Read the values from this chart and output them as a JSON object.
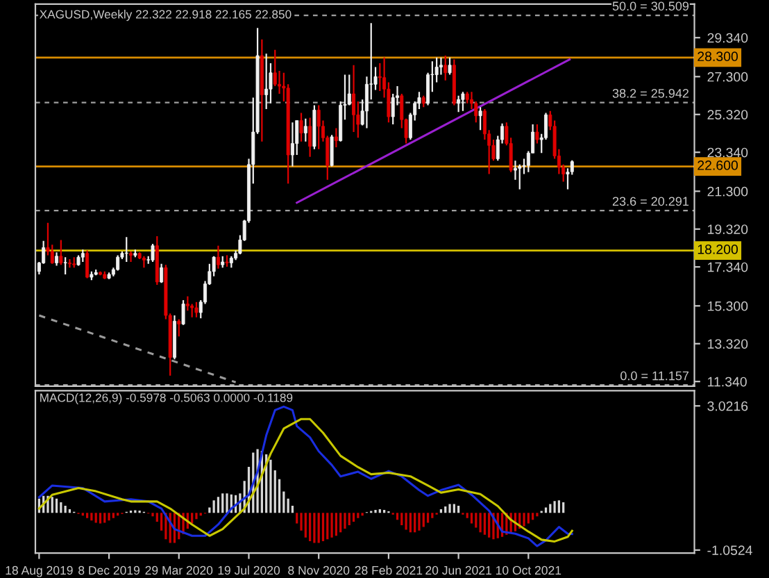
{
  "chart_data": [
    {
      "type": "candlestick",
      "title": "XAGUSD,Weekly 22.322 22.918 22.165 22.850",
      "x": [
        "2019-08-18",
        "2019-08-25",
        "2019-09-01",
        "2019-09-08",
        "2019-09-15",
        "2019-09-22",
        "2019-09-29",
        "2019-10-06",
        "2019-10-13",
        "2019-10-20",
        "2019-10-27",
        "2019-11-03",
        "2019-11-10",
        "2019-11-17",
        "2019-11-24",
        "2019-12-01",
        "2019-12-08",
        "2019-12-15",
        "2019-12-22",
        "2019-12-29",
        "2020-01-05",
        "2020-01-12",
        "2020-01-19",
        "2020-01-26",
        "2020-02-02",
        "2020-02-09",
        "2020-02-16",
        "2020-02-23",
        "2020-03-01",
        "2020-03-08",
        "2020-03-15",
        "2020-03-22",
        "2020-03-29",
        "2020-04-05",
        "2020-04-12",
        "2020-04-19",
        "2020-04-26",
        "2020-05-03",
        "2020-05-10",
        "2020-05-17",
        "2020-05-24",
        "2020-05-31",
        "2020-06-07",
        "2020-06-14",
        "2020-06-21",
        "2020-06-28",
        "2020-07-05",
        "2020-07-12",
        "2020-07-19",
        "2020-07-26",
        "2020-08-02",
        "2020-08-09",
        "2020-08-16",
        "2020-08-23",
        "2020-08-30",
        "2020-09-06",
        "2020-09-13",
        "2020-09-20",
        "2020-09-27",
        "2020-10-04",
        "2020-10-11",
        "2020-10-18",
        "2020-10-25",
        "2020-11-01",
        "2020-11-08",
        "2020-11-15",
        "2020-11-22",
        "2020-11-29",
        "2020-12-06",
        "2020-12-13",
        "2020-12-20",
        "2020-12-27",
        "2021-01-03",
        "2021-01-10",
        "2021-01-17",
        "2021-01-24",
        "2021-01-31",
        "2021-02-07",
        "2021-02-14",
        "2021-02-21",
        "2021-02-28",
        "2021-03-07",
        "2021-03-14",
        "2021-03-21",
        "2021-03-28",
        "2021-04-04",
        "2021-04-11",
        "2021-04-18",
        "2021-04-25",
        "2021-05-02",
        "2021-05-09",
        "2021-05-16",
        "2021-05-23",
        "2021-05-30",
        "2021-06-06",
        "2021-06-13",
        "2021-06-20",
        "2021-06-27",
        "2021-07-04",
        "2021-07-11",
        "2021-07-18",
        "2021-07-25",
        "2021-08-01",
        "2021-08-08",
        "2021-08-15",
        "2021-08-22",
        "2021-08-29",
        "2021-09-05",
        "2021-09-12",
        "2021-09-19",
        "2021-09-26",
        "2021-10-03",
        "2021-10-10",
        "2021-10-17",
        "2021-10-24",
        "2021-10-31",
        "2021-11-07",
        "2021-11-14",
        "2021-11-21",
        "2021-11-28",
        "2021-12-05",
        "2021-12-12",
        "2021-12-19"
      ],
      "ohlc": [
        [
          17.1,
          17.6,
          16.95,
          17.55
        ],
        [
          17.55,
          18.7,
          17.5,
          18.35
        ],
        [
          18.35,
          19.65,
          17.95,
          18.15
        ],
        [
          18.15,
          18.5,
          17.5,
          17.55
        ],
        [
          17.55,
          18.1,
          17.4,
          17.9
        ],
        [
          17.9,
          18.75,
          17.45,
          17.55
        ],
        [
          17.55,
          17.85,
          16.95,
          17.55
        ],
        [
          17.55,
          17.75,
          17.3,
          17.5
        ],
        [
          17.5,
          17.85,
          17.3,
          17.45
        ],
        [
          17.45,
          17.95,
          17.4,
          17.85
        ],
        [
          17.85,
          18.25,
          17.6,
          18.05
        ],
        [
          18.05,
          18.2,
          16.75,
          16.8
        ],
        [
          16.8,
          17.1,
          16.65,
          16.95
        ],
        [
          16.95,
          17.2,
          16.9,
          17.05
        ],
        [
          17.05,
          17.1,
          16.9,
          16.95
        ],
        [
          16.95,
          17.1,
          16.7,
          16.75
        ],
        [
          16.75,
          17.05,
          16.7,
          16.95
        ],
        [
          16.95,
          17.3,
          16.85,
          17.2
        ],
        [
          17.2,
          17.95,
          17.15,
          17.85
        ],
        [
          17.85,
          18.15,
          17.75,
          18.05
        ],
        [
          18.05,
          18.9,
          17.6,
          18.05
        ],
        [
          18.05,
          18.15,
          17.6,
          17.95
        ],
        [
          17.95,
          18.25,
          17.85,
          18.05
        ],
        [
          18.05,
          18.1,
          17.75,
          17.8
        ],
        [
          17.8,
          17.9,
          17.3,
          17.7
        ],
        [
          17.7,
          17.9,
          17.5,
          17.7
        ],
        [
          17.7,
          18.55,
          17.6,
          18.45
        ],
        [
          18.45,
          18.95,
          16.4,
          16.55
        ],
        [
          16.55,
          17.5,
          16.5,
          17.3
        ],
        [
          17.3,
          17.45,
          14.6,
          14.8
        ],
        [
          14.8,
          14.9,
          11.65,
          12.6
        ],
        [
          12.6,
          14.8,
          12.5,
          14.5
        ],
        [
          14.5,
          14.6,
          13.7,
          14.35
        ],
        [
          14.35,
          15.6,
          14.3,
          15.4
        ],
        [
          15.4,
          15.8,
          15.05,
          15.3
        ],
        [
          15.3,
          15.4,
          14.7,
          15.2
        ],
        [
          15.2,
          15.5,
          14.7,
          14.95
        ],
        [
          14.95,
          15.6,
          14.65,
          15.5
        ],
        [
          15.5,
          16.6,
          15.4,
          16.45
        ],
        [
          16.45,
          17.5,
          16.4,
          17.1
        ],
        [
          17.1,
          17.9,
          16.85,
          17.85
        ],
        [
          17.85,
          18.45,
          17.25,
          17.45
        ],
        [
          17.45,
          17.9,
          17.3,
          17.6
        ],
        [
          17.6,
          17.95,
          17.35,
          17.55
        ],
        [
          17.55,
          17.9,
          17.3,
          17.8
        ],
        [
          17.8,
          18.2,
          17.7,
          18.05
        ],
        [
          18.05,
          19.0,
          18.0,
          18.75
        ],
        [
          18.75,
          19.8,
          18.7,
          19.75
        ],
        [
          19.75,
          23.0,
          19.65,
          22.7
        ],
        [
          22.7,
          26.2,
          21.7,
          24.4
        ],
        [
          24.4,
          29.85,
          24.3,
          28.4
        ],
        [
          28.4,
          29.25,
          23.9,
          26.35
        ],
        [
          26.35,
          28.5,
          25.6,
          26.65
        ],
        [
          26.65,
          28.0,
          25.9,
          27.5
        ],
        [
          27.5,
          28.7,
          26.8,
          26.9
        ],
        [
          26.9,
          27.6,
          26.4,
          26.8
        ],
        [
          26.8,
          27.5,
          26.0,
          26.7
        ],
        [
          26.7,
          26.9,
          21.7,
          23.2
        ],
        [
          23.2,
          24.9,
          22.6,
          23.8
        ],
        [
          23.8,
          25.0,
          23.2,
          25.0
        ],
        [
          25.0,
          25.4,
          23.9,
          24.35
        ],
        [
          24.35,
          25.1,
          23.9,
          24.7
        ],
        [
          24.7,
          25.15,
          23.1,
          23.65
        ],
        [
          23.65,
          25.8,
          23.5,
          25.55
        ],
        [
          25.55,
          25.8,
          23.5,
          24.7
        ],
        [
          24.7,
          25.0,
          23.9,
          24.1
        ],
        [
          24.1,
          24.2,
          21.9,
          22.65
        ],
        [
          22.65,
          24.25,
          22.6,
          24.15
        ],
        [
          24.15,
          24.6,
          23.6,
          23.95
        ],
        [
          23.95,
          26.0,
          23.9,
          25.8
        ],
        [
          25.8,
          27.4,
          25.05,
          25.85
        ],
        [
          25.85,
          27.4,
          25.8,
          26.4
        ],
        [
          26.4,
          27.9,
          24.4,
          25.3
        ],
        [
          25.3,
          26.0,
          24.1,
          24.8
        ],
        [
          24.8,
          26.1,
          24.75,
          25.5
        ],
        [
          25.5,
          27.3,
          24.6,
          26.9
        ],
        [
          26.9,
          30.1,
          26.1,
          26.9
        ],
        [
          26.9,
          27.8,
          26.6,
          27.3
        ],
        [
          27.3,
          28.0,
          26.55,
          27.25
        ],
        [
          27.25,
          28.3,
          26.2,
          26.65
        ],
        [
          26.65,
          27.0,
          24.9,
          25.2
        ],
        [
          25.2,
          26.4,
          24.8,
          26.2
        ],
        [
          26.2,
          26.8,
          25.8,
          26.3
        ],
        [
          26.3,
          26.4,
          24.6,
          25.05
        ],
        [
          25.05,
          25.1,
          23.8,
          24.1
        ],
        [
          24.1,
          25.4,
          24.0,
          25.3
        ],
        [
          25.3,
          26.0,
          25.0,
          25.9
        ],
        [
          25.9,
          26.5,
          25.6,
          26.2
        ],
        [
          26.2,
          26.3,
          25.7,
          25.9
        ],
        [
          25.9,
          27.5,
          25.8,
          27.4
        ],
        [
          27.4,
          28.1,
          26.5,
          27.4
        ],
        [
          27.4,
          28.3,
          27.0,
          27.8
        ],
        [
          27.8,
          28.3,
          27.4,
          27.9
        ],
        [
          27.9,
          28.4,
          27.1,
          27.5
        ],
        [
          27.5,
          28.3,
          27.4,
          27.9
        ],
        [
          27.9,
          28.2,
          25.8,
          25.9
        ],
        [
          25.9,
          26.3,
          25.45,
          26.1
        ],
        [
          26.1,
          26.5,
          25.5,
          26.4
        ],
        [
          26.4,
          26.5,
          25.9,
          26.1
        ],
        [
          26.1,
          26.5,
          25.6,
          25.9
        ],
        [
          25.9,
          26.0,
          24.9,
          25.25
        ],
        [
          25.25,
          25.7,
          24.5,
          25.5
        ],
        [
          25.5,
          25.6,
          24.0,
          24.3
        ],
        [
          24.3,
          24.5,
          22.2,
          23.7
        ],
        [
          23.7,
          24.0,
          22.9,
          23.0
        ],
        [
          23.0,
          24.2,
          22.9,
          24.0
        ],
        [
          24.0,
          24.85,
          23.8,
          24.7
        ],
        [
          24.7,
          24.9,
          23.7,
          23.8
        ],
        [
          23.8,
          24.1,
          22.3,
          22.4
        ],
        [
          22.4,
          22.9,
          21.9,
          22.5
        ],
        [
          22.5,
          22.7,
          21.4,
          22.6
        ],
        [
          22.6,
          23.0,
          22.2,
          22.65
        ],
        [
          22.65,
          23.4,
          22.3,
          23.3
        ],
        [
          23.3,
          24.8,
          23.3,
          24.4
        ],
        [
          24.4,
          24.8,
          23.8,
          24.0
        ],
        [
          24.0,
          24.3,
          23.3,
          24.1
        ],
        [
          24.1,
          25.4,
          24.0,
          25.3
        ],
        [
          25.3,
          25.5,
          24.5,
          24.7
        ],
        [
          24.7,
          25.0,
          23.0,
          23.15
        ],
        [
          23.15,
          23.5,
          22.2,
          22.55
        ],
        [
          22.55,
          22.7,
          21.8,
          22.2
        ],
        [
          22.2,
          22.5,
          21.4,
          22.3
        ],
        [
          22.322,
          22.918,
          22.165,
          22.85
        ]
      ],
      "series": [
        {
          "type": "line",
          "color": "#9a20d0",
          "x": [
            "2020-10-04",
            "2021-12-15"
          ],
          "values": [
            20.7,
            28.2
          ]
        },
        {
          "type": "line",
          "color": "#9a9a9a",
          "line_style": "dashed",
          "x": [
            "2019-08-18",
            "2020-06-28"
          ],
          "values": [
            14.8,
            11.3
          ]
        }
      ],
      "xlim": [
        "2019-08-12",
        "2022-07-03"
      ],
      "ylim": [
        11.1,
        31.1
      ],
      "yticks": [
        {
          "value": 29.34,
          "label": "29.340"
        },
        {
          "value": 27.3,
          "label": "27.300"
        },
        {
          "value": 25.32,
          "label": "25.320"
        },
        {
          "value": 23.34,
          "label": "23.340"
        },
        {
          "value": 21.3,
          "label": "21.300"
        },
        {
          "value": 19.32,
          "label": "19.320"
        },
        {
          "value": 17.34,
          "label": "17.340"
        },
        {
          "value": 15.3,
          "label": "15.300"
        },
        {
          "value": 13.32,
          "label": "13.320"
        },
        {
          "value": 11.34,
          "label": "11.340"
        }
      ],
      "ref_lines": [
        {
          "axis": "y",
          "value": 30.509,
          "label": "50.0 = 30.509",
          "color": "#a0a0a0",
          "line_style": "dashed"
        },
        {
          "axis": "y",
          "value": 25.942,
          "label": "38.2 = 25.942",
          "color": "#a0a0a0",
          "line_style": "dashed"
        },
        {
          "axis": "y",
          "value": 20.291,
          "label": "23.6 = 20.291",
          "color": "#a0a0a0",
          "line_style": "dashed"
        },
        {
          "axis": "y",
          "value": 11.157,
          "label": "0.0 = 11.157",
          "color": "#a0a0a0",
          "line_style": "dashed"
        },
        {
          "axis": "y",
          "value": 28.3,
          "label": "28.300",
          "color": "#d98c00",
          "line_style": "solid"
        },
        {
          "axis": "y",
          "value": 22.6,
          "label": "22.600",
          "color": "#d98c00",
          "line_style": "solid"
        },
        {
          "axis": "y",
          "value": 18.2,
          "label": "18.200",
          "color": "#d4c000",
          "line_style": "solid"
        }
      ],
      "tick_labels": "y"
    },
    {
      "type": "bar",
      "title": "MACD(12,26,9) -0.5978 -0.5063 0.0000 -0.1189",
      "x": [
        "2019-08-18",
        "2019-08-25",
        "2019-09-01",
        "2019-09-08",
        "2019-09-15",
        "2019-09-22",
        "2019-09-29",
        "2019-10-06",
        "2019-10-13",
        "2019-10-20",
        "2019-10-27",
        "2019-11-03",
        "2019-11-10",
        "2019-11-17",
        "2019-11-24",
        "2019-12-01",
        "2019-12-08",
        "2019-12-15",
        "2019-12-22",
        "2019-12-29",
        "2020-01-05",
        "2020-01-12",
        "2020-01-19",
        "2020-01-26",
        "2020-02-02",
        "2020-02-09",
        "2020-02-16",
        "2020-02-23",
        "2020-03-01",
        "2020-03-08",
        "2020-03-15",
        "2020-03-22",
        "2020-03-29",
        "2020-04-05",
        "2020-04-12",
        "2020-04-19",
        "2020-04-26",
        "2020-05-03",
        "2020-05-10",
        "2020-05-17",
        "2020-05-24",
        "2020-05-31",
        "2020-06-07",
        "2020-06-14",
        "2020-06-21",
        "2020-06-28",
        "2020-07-05",
        "2020-07-12",
        "2020-07-19",
        "2020-07-26",
        "2020-08-02",
        "2020-08-09",
        "2020-08-16",
        "2020-08-23",
        "2020-08-30",
        "2020-09-06",
        "2020-09-13",
        "2020-09-20",
        "2020-09-27",
        "2020-10-04",
        "2020-10-11",
        "2020-10-18",
        "2020-10-25",
        "2020-11-01",
        "2020-11-08",
        "2020-11-15",
        "2020-11-22",
        "2020-11-29",
        "2020-12-06",
        "2020-12-13",
        "2020-12-20",
        "2020-12-27",
        "2021-01-03",
        "2021-01-10",
        "2021-01-17",
        "2021-01-24",
        "2021-01-31",
        "2021-02-07",
        "2021-02-14",
        "2021-02-21",
        "2021-02-28",
        "2021-03-07",
        "2021-03-14",
        "2021-03-21",
        "2021-03-28",
        "2021-04-04",
        "2021-04-11",
        "2021-04-18",
        "2021-04-25",
        "2021-05-02",
        "2021-05-09",
        "2021-05-16",
        "2021-05-23",
        "2021-05-30",
        "2021-06-06",
        "2021-06-13",
        "2021-06-20",
        "2021-06-27",
        "2021-07-04",
        "2021-07-11",
        "2021-07-18",
        "2021-07-25",
        "2021-08-01",
        "2021-08-08",
        "2021-08-15",
        "2021-08-22",
        "2021-08-29",
        "2021-09-05",
        "2021-09-12",
        "2021-09-19",
        "2021-09-26",
        "2021-10-03",
        "2021-10-10",
        "2021-10-17",
        "2021-10-24",
        "2021-10-31",
        "2021-11-07",
        "2021-11-14",
        "2021-11-21",
        "2021-11-28",
        "2021-12-05"
      ],
      "series": [
        {
          "color": "#d8d8d8",
          "values": [
            0.4,
            0.48,
            0.48,
            0.45,
            0.4,
            0.3,
            0.2,
            0.1,
            0.03,
            null,
            null,
            null,
            null,
            null,
            null,
            null,
            null,
            null,
            null,
            null,
            0.03,
            0.06,
            0.07,
            0.06,
            0.03,
            null,
            null,
            null,
            null,
            null,
            null,
            null,
            null,
            null,
            null,
            null,
            null,
            null,
            null,
            0.15,
            0.35,
            0.45,
            0.55,
            0.55,
            0.52,
            0.5,
            0.55,
            0.9,
            1.3,
            1.7,
            1.8,
            1.75,
            1.65,
            1.5,
            1.2,
            0.95,
            0.6,
            0.4,
            0.2,
            null,
            null,
            null,
            null,
            null,
            null,
            null,
            null,
            null,
            null,
            null,
            null,
            null,
            null,
            null,
            null,
            0.02,
            0.05,
            0.08,
            0.1,
            0.08,
            0.04,
            null,
            null,
            null,
            null,
            null,
            null,
            null,
            null,
            null,
            null,
            null,
            0.1,
            0.18,
            0.25,
            0.25,
            0.2,
            null,
            null,
            null,
            null,
            null,
            null,
            null,
            null,
            null,
            null,
            null,
            null,
            null,
            null,
            null,
            null,
            null,
            null,
            0.05,
            0.15,
            0.25,
            0.33,
            0.35,
            0.3
          ]
        },
        {
          "color": "#cc0000",
          "values": [
            null,
            null,
            null,
            null,
            null,
            null,
            null,
            null,
            null,
            -0.03,
            -0.08,
            -0.15,
            -0.22,
            -0.28,
            -0.3,
            -0.28,
            -0.22,
            -0.15,
            -0.08,
            -0.03,
            null,
            null,
            null,
            null,
            null,
            -0.02,
            -0.1,
            -0.25,
            -0.5,
            -0.75,
            -0.85,
            -0.85,
            -0.75,
            -0.6,
            -0.45,
            -0.3,
            -0.18,
            -0.08,
            -0.02,
            null,
            null,
            null,
            null,
            null,
            null,
            null,
            null,
            null,
            null,
            null,
            null,
            null,
            null,
            null,
            null,
            null,
            null,
            null,
            null,
            -0.3,
            -0.5,
            -0.7,
            -0.8,
            -0.85,
            -0.85,
            -0.8,
            -0.75,
            -0.7,
            -0.65,
            -0.55,
            -0.45,
            -0.35,
            -0.25,
            -0.15,
            -0.08,
            null,
            null,
            null,
            null,
            null,
            null,
            -0.05,
            -0.2,
            -0.35,
            -0.48,
            -0.55,
            -0.55,
            -0.5,
            -0.4,
            -0.28,
            -0.15,
            -0.05,
            null,
            null,
            null,
            null,
            null,
            -0.05,
            -0.15,
            -0.3,
            -0.42,
            -0.55,
            -0.62,
            -0.7,
            -0.75,
            -0.72,
            -0.68,
            -0.62,
            -0.58,
            -0.52,
            -0.45,
            -0.38,
            -0.3,
            -0.2,
            -0.1,
            null,
            null,
            null,
            null,
            null,
            null
          ]
        },
        {
          "type": "line",
          "color": "#1a2ee0",
          "x": [
            "2019-08-18",
            "2019-09-08",
            "2019-10-27",
            "2019-12-01",
            "2020-01-12",
            "2020-02-09",
            "2020-03-01",
            "2020-03-22",
            "2020-04-19",
            "2020-05-10",
            "2020-05-31",
            "2020-06-21",
            "2020-07-19",
            "2020-08-02",
            "2020-08-16",
            "2020-08-30",
            "2020-09-13",
            "2020-09-27",
            "2020-10-04",
            "2020-10-25",
            "2020-11-08",
            "2020-11-29",
            "2020-12-13",
            "2021-01-10",
            "2021-01-31",
            "2021-02-28",
            "2021-03-21",
            "2021-04-18",
            "2021-05-02",
            "2021-05-23",
            "2021-06-20",
            "2021-07-11",
            "2021-08-08",
            "2021-08-29",
            "2021-09-19",
            "2021-10-10",
            "2021-10-24",
            "2021-11-07",
            "2021-11-28",
            "2021-12-12",
            "2021-12-19"
          ],
          "values": [
            0.44,
            0.77,
            0.7,
            0.32,
            0.38,
            0.32,
            0.12,
            -0.46,
            -0.65,
            -0.65,
            -0.33,
            0.12,
            0.51,
            1.16,
            2.19,
            2.9,
            3.0,
            2.9,
            2.45,
            2.13,
            1.74,
            1.35,
            1.03,
            1.16,
            0.96,
            1.18,
            1.03,
            0.64,
            0.48,
            0.64,
            0.79,
            0.51,
            0.06,
            -0.53,
            -0.59,
            -0.72,
            -0.94,
            -0.78,
            -0.4,
            -0.59,
            -0.6
          ]
        },
        {
          "type": "line",
          "color": "#c8c800",
          "x": [
            "2019-08-18",
            "2019-09-08",
            "2019-10-20",
            "2019-11-17",
            "2019-12-29",
            "2020-01-12",
            "2020-02-23",
            "2020-03-15",
            "2020-04-19",
            "2020-05-17",
            "2020-06-07",
            "2020-07-12",
            "2020-08-02",
            "2020-08-23",
            "2020-09-13",
            "2020-10-11",
            "2020-10-25",
            "2020-11-15",
            "2020-12-13",
            "2021-01-10",
            "2021-01-31",
            "2021-02-28",
            "2021-04-04",
            "2021-05-02",
            "2021-05-23",
            "2021-06-20",
            "2021-07-25",
            "2021-08-22",
            "2021-09-12",
            "2021-10-10",
            "2021-10-31",
            "2021-11-21",
            "2021-12-12",
            "2021-12-19"
          ],
          "values": [
            0.12,
            0.51,
            0.7,
            0.61,
            0.38,
            0.32,
            0.32,
            0.12,
            -0.33,
            -0.65,
            -0.46,
            0.12,
            0.77,
            1.67,
            2.38,
            2.65,
            2.65,
            2.26,
            1.61,
            1.29,
            1.09,
            1.13,
            1.03,
            0.77,
            0.57,
            0.66,
            0.53,
            0.19,
            -0.2,
            -0.53,
            -0.76,
            -0.81,
            -0.68,
            -0.51
          ]
        }
      ],
      "xlim": [
        "2019-08-12",
        "2022-07-03"
      ],
      "xticks": [
        {
          "value": "2019-08-18",
          "label": "18 Aug 2019"
        },
        {
          "value": "2019-12-08",
          "label": "8 Dec 2019"
        },
        {
          "value": "2020-03-29",
          "label": "29 Mar 2020"
        },
        {
          "value": "2020-07-19",
          "label": "19 Jul 2020"
        },
        {
          "value": "2020-11-08",
          "label": "8 Nov 2020"
        },
        {
          "value": "2021-02-28",
          "label": "28 Feb 2021"
        },
        {
          "value": "2021-06-20",
          "label": "20 Jun 2021"
        },
        {
          "value": "2021-10-10",
          "label": "10 Oct 2021"
        }
      ],
      "ylim": [
        -1.14,
        3.45
      ],
      "yticks": [
        {
          "value": 3.0216,
          "label": "3.0216"
        },
        {
          "value": -1.0524,
          "label": "-1.0524"
        }
      ]
    }
  ]
}
